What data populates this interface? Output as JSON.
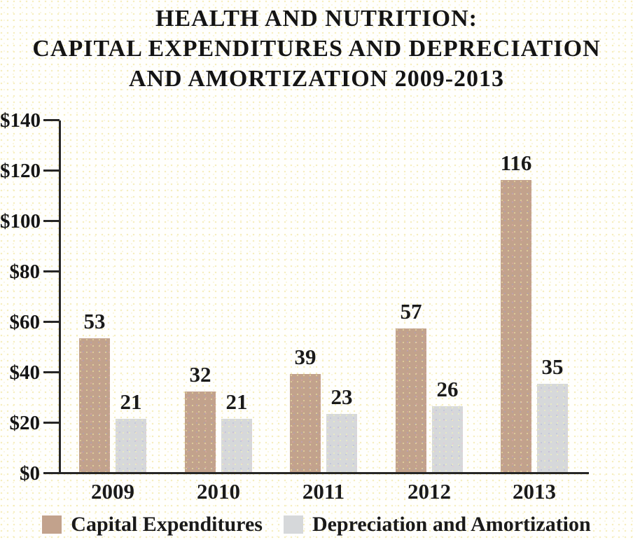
{
  "title": {
    "lines": [
      "HEALTH AND NUTRITION:",
      "CAPITAL EXPENDITURES AND DEPRECIATION",
      "AND AMORTIZATION 2009-2013"
    ]
  },
  "chart_data": {
    "type": "bar",
    "title": "HEALTH AND NUTRITION: CAPITAL EXPENDITURES AND DEPRECIATION AND AMORTIZATION 2009-2013",
    "categories": [
      "2009",
      "2010",
      "2011",
      "2012",
      "2013"
    ],
    "series": [
      {
        "name": "Capital Expenditures",
        "color": "#c2a28c",
        "values": [
          53,
          32,
          39,
          57,
          116
        ]
      },
      {
        "name": "Depreciation and Amortization",
        "color": "#d6d8da",
        "values": [
          21,
          21,
          23,
          26,
          35
        ]
      }
    ],
    "xlabel": "",
    "ylabel": "",
    "ylim": [
      0,
      140
    ],
    "ytick_values": [
      0,
      20,
      40,
      60,
      80,
      100,
      120,
      140
    ],
    "ytick_labels": [
      "$0",
      "$20",
      "$40",
      "$60",
      "$80",
      "$100",
      "$120",
      "$140"
    ],
    "grid": false,
    "legend_position": "bottom",
    "data_labels_shown": true
  },
  "colors": {
    "axis": "#262626",
    "text": "#171717",
    "background": "#fffffd"
  }
}
